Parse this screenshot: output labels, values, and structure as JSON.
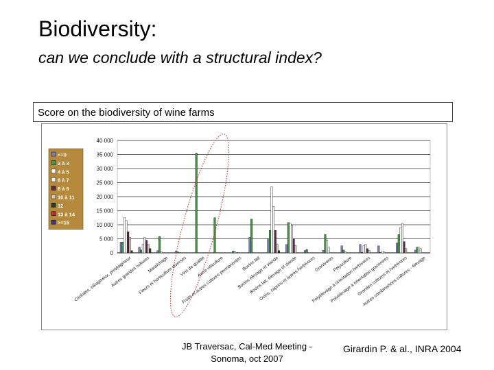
{
  "slide": {
    "title": "Biodiversity:",
    "subtitle": "can we conclude with a structural index?",
    "caption": "Score on the biodiversity of wine farms",
    "footer_left": "JB Traversac,  Cal-Med Meeting - Sonoma, oct 2007",
    "footer_right": "Girardin P. & al., INRA 2004"
  },
  "chart_data": {
    "type": "bar",
    "title": "",
    "xlabel": "",
    "ylabel": "",
    "ylim": [
      0,
      40000
    ],
    "yticks": [
      "0",
      "5 000",
      "10 000",
      "15 000",
      "20 000",
      "25 000",
      "30 000",
      "35 000",
      "40 000"
    ],
    "grid": true,
    "legend_position": "left",
    "annotation": "red dotted ellipse around the viticulture categories",
    "categories": [
      "Céréales, oléagineux, protéagineux",
      "Autres grandes cultures",
      "Maraîchage",
      "Fleurs et horticulture diverses",
      "Vins de qualité",
      "Autre viticulture",
      "Fruits et autres cultures permanentes",
      "Bovins lait",
      "Bovins élevage et viande",
      "Bovins lait, élevage et viande",
      "Ovins, caprins et autres herbivores",
      "Granivores",
      "Polyculture",
      "Polyélevage à orientation herbivores",
      "Polyélevage à orientation granivores",
      "Grandes cultures et herbivores",
      "Autres combinaisons cultures - élevage"
    ],
    "series": [
      {
        "name": "<=0",
        "color": "#7f7fbf",
        "values": [
          3800,
          2000,
          800,
          700,
          0,
          0,
          0,
          5500,
          5000,
          3000,
          800,
          900,
          2500,
          3000,
          2500,
          3500,
          1000
        ]
      },
      {
        "name": "2 à 3",
        "color": "#3c9a3c",
        "values": [
          3800,
          1000,
          5800,
          300,
          35500,
          12500,
          700,
          12000,
          8000,
          10800,
          1200,
          6500,
          1000,
          200,
          200,
          6500,
          2000
        ]
      },
      {
        "name": "4 à 5",
        "color": "#ffffff",
        "values": [
          12500,
          3000,
          300,
          200,
          0,
          0,
          400,
          0,
          23500,
          10500,
          0,
          4500,
          300,
          2500,
          500,
          9000,
          2000
        ]
      },
      {
        "name": "6 à 7",
        "color": "#f2f2f2",
        "values": [
          11500,
          5500,
          0,
          0,
          0,
          0,
          200,
          0,
          16500,
          9800,
          0,
          2000,
          0,
          3000,
          300,
          10500,
          1500
        ]
      },
      {
        "name": "8 à 9",
        "color": "#5a2a4a",
        "values": [
          7500,
          4500,
          0,
          0,
          0,
          0,
          0,
          0,
          8000,
          5000,
          0,
          0,
          0,
          1500,
          0,
          4000,
          0
        ]
      },
      {
        "name": "10 à 11",
        "color": "#d9c9b8",
        "values": [
          5500,
          3000,
          0,
          0,
          0,
          0,
          0,
          0,
          3000,
          2500,
          0,
          0,
          0,
          800,
          0,
          1500,
          0
        ]
      },
      {
        "name": "12",
        "color": "#1f3f2f",
        "values": [
          800,
          1500,
          0,
          0,
          0,
          0,
          0,
          0,
          800,
          0,
          0,
          0,
          0,
          0,
          0,
          0,
          0
        ]
      },
      {
        "name": "13 à 14",
        "color": "#c0283a",
        "values": [
          0,
          0,
          0,
          0,
          0,
          0,
          0,
          0,
          0,
          0,
          0,
          0,
          0,
          0,
          0,
          0,
          0
        ]
      },
      {
        "name": ">=15",
        "color": "#3a3a8a",
        "values": [
          0,
          0,
          0,
          0,
          0,
          0,
          0,
          0,
          0,
          0,
          0,
          0,
          0,
          0,
          0,
          0,
          0
        ]
      }
    ]
  }
}
